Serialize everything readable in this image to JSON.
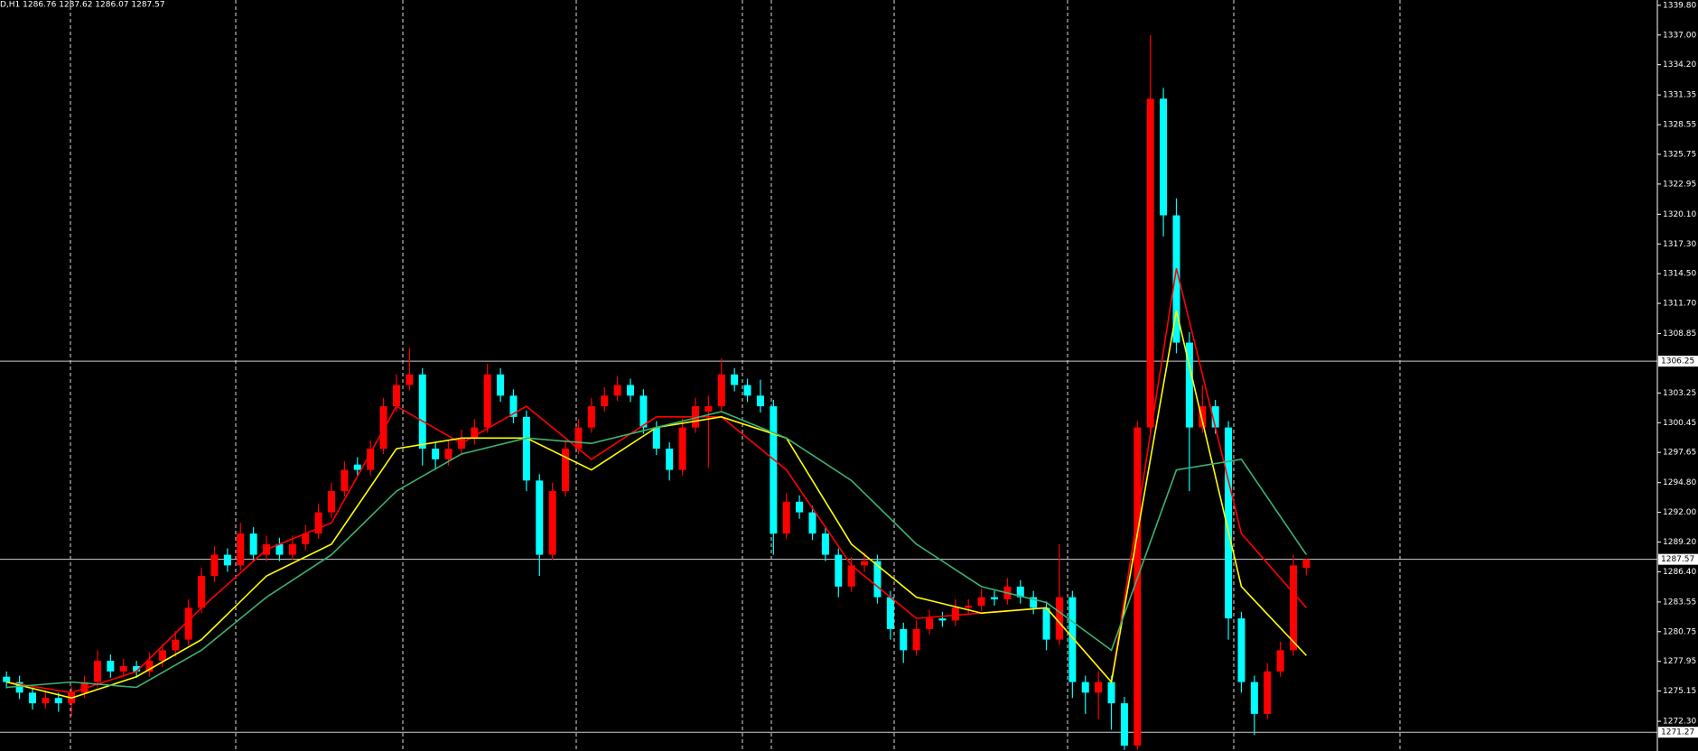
{
  "chart_data": {
    "type": "candlestick",
    "header": "D,H1  1286.76 1287.62 1286.07 1287.57",
    "up_color": "#ff0000",
    "down_color": "#00ffff",
    "xlim": [
      -0.5,
      127
    ],
    "ylim": [
      1269.5,
      1340.3
    ],
    "yticks": [
      {
        "value": 1339.8,
        "label": "1339.80"
      },
      {
        "value": 1337,
        "label": "1337.00"
      },
      {
        "value": 1334.2,
        "label": "1334.20"
      },
      1331.35,
      1328.55,
      1325.75,
      1322.95,
      {
        "value": 1320.1,
        "label": "1320.10"
      },
      {
        "value": 1317.3,
        "label": "1317.30"
      },
      {
        "value": 1314.5,
        "label": "1314.50"
      },
      {
        "value": 1311.7,
        "label": "1311.70"
      },
      1308.85,
      1303.25,
      1300.45,
      1297.65,
      {
        "value": 1294.8,
        "label": "1294.80"
      },
      {
        "value": 1292,
        "label": "1292.00"
      },
      {
        "value": 1289.2,
        "label": "1289.20"
      },
      {
        "value": 1286.4,
        "label": "1286.40"
      },
      1283.55,
      1280.75,
      1277.95,
      1275.15,
      {
        "value": 1272.3,
        "label": "1272.30"
      }
    ],
    "hlines": [
      1306.25,
      1287.57,
      1271.27
    ],
    "ohlc": [
      [
        1276.5,
        1277,
        1275.4,
        1276
      ],
      [
        1276,
        1276.6,
        1274.4,
        1275
      ],
      [
        1275,
        1275.5,
        1273.4,
        1274
      ],
      [
        1274,
        1275.2,
        1273.5,
        1274.5
      ],
      [
        1274.5,
        1275,
        1273.2,
        1274
      ],
      [
        1274,
        1275.6,
        1272.8,
        1275
      ],
      [
        1275,
        1276.6,
        1274.5,
        1276
      ],
      [
        1276,
        1279,
        1275.5,
        1278
      ],
      [
        1278,
        1278.6,
        1276.4,
        1277
      ],
      [
        1277,
        1278.2,
        1276.5,
        1277.5
      ],
      [
        1277.5,
        1278,
        1276.4,
        1277
      ],
      [
        1277,
        1278.8,
        1276.5,
        1278
      ],
      [
        1278,
        1279.6,
        1277.4,
        1279
      ],
      [
        1279,
        1280.8,
        1278.4,
        1280
      ],
      [
        1280,
        1283.8,
        1279.5,
        1283
      ],
      [
        1283,
        1286.8,
        1282.5,
        1286
      ],
      [
        1286,
        1288.8,
        1285.4,
        1288
      ],
      [
        1288,
        1288.6,
        1286.4,
        1287
      ],
      [
        1287,
        1291,
        1286.5,
        1290
      ],
      [
        1290,
        1290.6,
        1287.4,
        1288
      ],
      [
        1288,
        1289.8,
        1287.4,
        1289
      ],
      [
        1289,
        1289.6,
        1287.4,
        1288
      ],
      [
        1288,
        1289.8,
        1287.5,
        1289
      ],
      [
        1289,
        1290.8,
        1288.4,
        1290
      ],
      [
        1290,
        1292.8,
        1289.5,
        1292
      ],
      [
        1292,
        1294.8,
        1291.5,
        1294
      ],
      [
        1294,
        1296.8,
        1293.5,
        1296
      ],
      [
        1296.5,
        1297.2,
        1295.4,
        1296
      ],
      [
        1296,
        1298.8,
        1295.5,
        1298
      ],
      [
        1298,
        1302.8,
        1297.5,
        1302
      ],
      [
        1302,
        1305,
        1301.5,
        1304
      ],
      [
        1304,
        1307.5,
        1303.5,
        1305
      ],
      [
        1305,
        1305.6,
        1296.4,
        1298
      ],
      [
        1298,
        1298.6,
        1296,
        1297
      ],
      [
        1297,
        1298.8,
        1296.4,
        1298
      ],
      [
        1298,
        1299.8,
        1297.4,
        1299
      ],
      [
        1299,
        1300.8,
        1298.4,
        1300
      ],
      [
        1300,
        1306,
        1299.5,
        1305
      ],
      [
        1305,
        1305.6,
        1302.4,
        1303
      ],
      [
        1303,
        1303.6,
        1300.4,
        1301
      ],
      [
        1301,
        1301.6,
        1294,
        1295
      ],
      [
        1295,
        1295.6,
        1286,
        1288
      ],
      [
        1288,
        1294.8,
        1287.5,
        1294
      ],
      [
        1294,
        1298.8,
        1293.5,
        1298
      ],
      [
        1298,
        1300.8,
        1297.5,
        1300
      ],
      [
        1300,
        1302.8,
        1299.5,
        1302
      ],
      [
        1302,
        1303.8,
        1301.5,
        1303
      ],
      [
        1303,
        1304.8,
        1302.5,
        1304
      ],
      [
        1304,
        1304.6,
        1302.4,
        1303
      ],
      [
        1303,
        1303.6,
        1299.4,
        1300
      ],
      [
        1300,
        1300.6,
        1297.4,
        1298
      ],
      [
        1298,
        1298.6,
        1295,
        1296
      ],
      [
        1296,
        1300.8,
        1295.5,
        1300
      ],
      [
        1300,
        1302.8,
        1299.5,
        1302
      ],
      [
        1301.5,
        1303,
        1296.2,
        1302
      ],
      [
        1302,
        1306.5,
        1301.5,
        1305
      ],
      [
        1305,
        1305.6,
        1303.4,
        1304
      ],
      [
        1304,
        1304.6,
        1302.4,
        1303
      ],
      [
        1303,
        1304.5,
        1301.4,
        1302
      ],
      [
        1302,
        1302.6,
        1288,
        1290
      ],
      [
        1290,
        1293.8,
        1289.5,
        1293
      ],
      [
        1293,
        1293.6,
        1291.4,
        1292
      ],
      [
        1292,
        1292.6,
        1289.4,
        1290
      ],
      [
        1290,
        1290.6,
        1287.4,
        1288
      ],
      [
        1288,
        1288.6,
        1284,
        1285
      ],
      [
        1285,
        1287.8,
        1284.5,
        1287
      ],
      [
        1287,
        1288.2,
        1286.4,
        1287.4
      ],
      [
        1287.4,
        1288,
        1283.4,
        1284
      ],
      [
        1284,
        1284.6,
        1280,
        1281
      ],
      [
        1281,
        1281.6,
        1277.8,
        1279
      ],
      [
        1279,
        1281.8,
        1278.5,
        1281
      ],
      [
        1281,
        1282.8,
        1280.5,
        1282
      ],
      [
        1282,
        1282.6,
        1281.2,
        1281.8
      ],
      [
        1281.8,
        1283.8,
        1281.3,
        1283
      ],
      [
        1283,
        1283.8,
        1282.4,
        1283.2
      ],
      [
        1283.2,
        1284.8,
        1282.7,
        1284
      ],
      [
        1284,
        1284.6,
        1283.2,
        1283.8
      ],
      [
        1283.8,
        1285.8,
        1283.3,
        1285
      ],
      [
        1285,
        1285.6,
        1283.4,
        1284
      ],
      [
        1284,
        1284.6,
        1282.4,
        1283
      ],
      [
        1283,
        1283.6,
        1279,
        1280
      ],
      [
        1280,
        1289,
        1279.5,
        1284
      ],
      [
        1284,
        1284.6,
        1274.5,
        1276
      ],
      [
        1276,
        1276.6,
        1273,
        1275
      ],
      [
        1275,
        1277,
        1272.5,
        1276
      ],
      [
        1276,
        1276.6,
        1271.5,
        1274
      ],
      [
        1274,
        1274.6,
        1269.6,
        1270
      ],
      [
        1270,
        1300.6,
        1269.6,
        1300
      ],
      [
        1300,
        1337,
        1299.5,
        1331
      ],
      [
        1331,
        1332,
        1318,
        1320
      ],
      [
        1320,
        1321.6,
        1307,
        1308
      ],
      [
        1308,
        1309,
        1294,
        1300
      ],
      [
        1300,
        1304,
        1299.5,
        1302
      ],
      [
        1302,
        1302.6,
        1299.4,
        1300
      ],
      [
        1300,
        1300.6,
        1280,
        1282
      ],
      [
        1282,
        1282.6,
        1275,
        1276
      ],
      [
        1276,
        1276.6,
        1271,
        1273
      ],
      [
        1273,
        1277.8,
        1272.5,
        1277
      ],
      [
        1277,
        1279.8,
        1276.5,
        1279
      ],
      [
        1279,
        1288,
        1278.5,
        1287
      ],
      [
        1286.76,
        1287.62,
        1286.07,
        1287.57
      ]
    ],
    "series": [
      {
        "color": "#ff0000",
        "x": [
          0,
          5,
          10,
          15,
          20,
          25,
          30,
          35,
          40,
          45,
          50,
          55,
          60,
          65,
          70,
          75,
          80,
          85,
          90,
          95,
          100
        ],
        "values": [
          1276,
          1275,
          1277,
          1283,
          1288.5,
          1291,
          1302,
          1298.5,
          1302,
          1297,
          1301,
          1301,
          1296,
          1287,
          1282,
          1282.5,
          1283,
          1276,
          1315,
          1290,
          1283
        ]
      },
      {
        "color": "#ffff00",
        "x": [
          0,
          5,
          10,
          15,
          20,
          25,
          30,
          35,
          40,
          45,
          50,
          55,
          60,
          65,
          70,
          75,
          80,
          85,
          90,
          95,
          100
        ],
        "values": [
          1276,
          1274.5,
          1276.5,
          1280,
          1286,
          1289,
          1298,
          1299,
          1299,
          1296,
          1300,
          1301,
          1299,
          1289,
          1284,
          1282.5,
          1283,
          1276,
          1311,
          1285,
          1278.5
        ]
      },
      {
        "color": "#3cb371",
        "x": [
          0,
          5,
          10,
          15,
          20,
          25,
          30,
          35,
          40,
          45,
          50,
          55,
          60,
          65,
          70,
          75,
          80,
          85,
          90,
          95,
          100
        ],
        "values": [
          1275.5,
          1276,
          1275.5,
          1279,
          1284,
          1288,
          1294,
          1297.5,
          1299,
          1298.5,
          1300,
          1301.5,
          1299,
          1295,
          1289,
          1285,
          1283.5,
          1279,
          1296,
          1297,
          1288
        ]
      }
    ]
  }
}
